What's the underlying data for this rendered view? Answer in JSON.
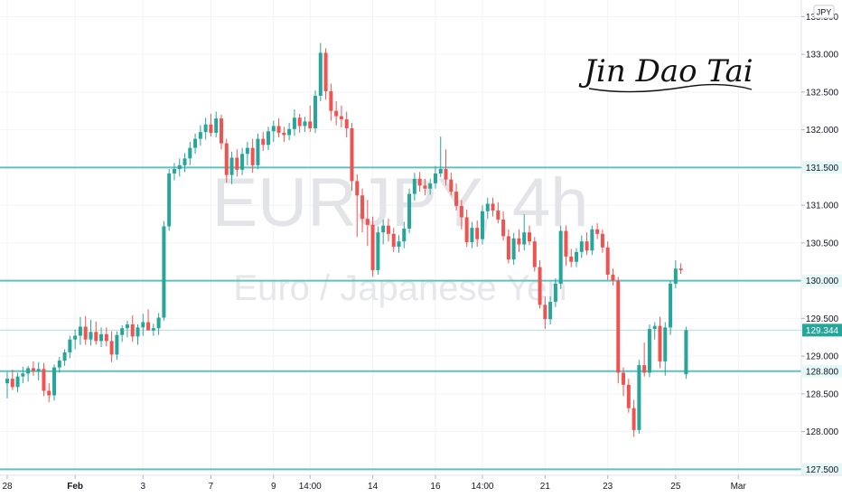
{
  "chart_data": {
    "type": "candlestick",
    "watermark": {
      "symbol": "EURJPY",
      "interval": "4h",
      "description": "Euro / Japanese Yen"
    },
    "currency_badge": "JPY",
    "signature_text": "Jin Dao Tai",
    "ylim": [
      127.42,
      133.72
    ],
    "y_ticks": [
      "128.000",
      "128.500",
      "129.000",
      "129.500",
      "130.500",
      "131.000",
      "131.500",
      "132.000",
      "132.500",
      "133.000",
      "133.500"
    ],
    "x_ticks": [
      {
        "label": "28",
        "bar": 0,
        "bold": false
      },
      {
        "label": "Feb",
        "bar": 13,
        "bold": true
      },
      {
        "label": "3",
        "bar": 26,
        "bold": false
      },
      {
        "label": "7",
        "bar": 39,
        "bold": false
      },
      {
        "label": "9",
        "bar": 51,
        "bold": false
      },
      {
        "label": "14:00",
        "bar": 58,
        "bold": false
      },
      {
        "label": "14",
        "bar": 70,
        "bold": false
      },
      {
        "label": "16",
        "bar": 82,
        "bold": false
      },
      {
        "label": "14:00",
        "bar": 91,
        "bold": false
      },
      {
        "label": "21",
        "bar": 103,
        "bold": false
      },
      {
        "label": "23",
        "bar": 115,
        "bold": false
      },
      {
        "label": "25",
        "bar": 128,
        "bold": false
      },
      {
        "label": "Mar",
        "bar": 140,
        "bold": false
      }
    ],
    "levels": [
      {
        "value": 131.5,
        "label": "131.500"
      },
      {
        "value": 130.0,
        "label": "130.000"
      },
      {
        "value": 128.8,
        "label": "128.800"
      },
      {
        "value": 127.5,
        "label": "127.500"
      }
    ],
    "last_price": {
      "value": 129.344,
      "label": "129.344"
    },
    "candles": [
      [
        128.64,
        128.79,
        128.44,
        128.7
      ],
      [
        128.7,
        128.82,
        128.55,
        128.59
      ],
      [
        128.59,
        128.78,
        128.52,
        128.73
      ],
      [
        128.73,
        128.86,
        128.64,
        128.77
      ],
      [
        128.77,
        128.87,
        128.66,
        128.84
      ],
      [
        128.84,
        128.93,
        128.74,
        128.8
      ],
      [
        128.8,
        128.92,
        128.68,
        128.83
      ],
      [
        128.83,
        128.91,
        128.47,
        128.54
      ],
      [
        128.54,
        128.64,
        128.39,
        128.48
      ],
      [
        128.48,
        128.89,
        128.41,
        128.85
      ],
      [
        128.85,
        128.99,
        128.78,
        128.94
      ],
      [
        128.94,
        129.09,
        128.87,
        129.05
      ],
      [
        129.05,
        129.27,
        128.97,
        129.22
      ],
      [
        129.22,
        129.35,
        129.09,
        129.27
      ],
      [
        129.27,
        129.52,
        129.15,
        129.39
      ],
      [
        129.39,
        129.53,
        129.15,
        129.22
      ],
      [
        129.22,
        129.48,
        129.14,
        129.32
      ],
      [
        129.32,
        129.46,
        129.15,
        129.2
      ],
      [
        129.2,
        129.38,
        129.12,
        129.29
      ],
      [
        129.29,
        129.38,
        129.13,
        129.2
      ],
      [
        129.2,
        129.33,
        128.92,
        129.02
      ],
      [
        129.02,
        129.33,
        128.95,
        129.28
      ],
      [
        129.28,
        129.41,
        129.19,
        129.37
      ],
      [
        129.37,
        129.47,
        129.25,
        129.42
      ],
      [
        129.42,
        129.54,
        129.19,
        129.26
      ],
      [
        129.26,
        129.42,
        129.15,
        129.38
      ],
      [
        129.38,
        129.56,
        129.27,
        129.45
      ],
      [
        129.45,
        129.62,
        129.39,
        129.34
      ],
      [
        129.34,
        129.43,
        129.27,
        129.37
      ],
      [
        129.37,
        129.57,
        129.28,
        129.51
      ],
      [
        129.51,
        130.79,
        129.47,
        130.72
      ],
      [
        130.72,
        131.48,
        130.66,
        131.42
      ],
      [
        131.42,
        131.56,
        131.33,
        131.48
      ],
      [
        131.48,
        131.62,
        131.38,
        131.53
      ],
      [
        131.53,
        131.69,
        131.44,
        131.62
      ],
      [
        131.62,
        131.84,
        131.53,
        131.76
      ],
      [
        131.76,
        131.95,
        131.68,
        131.88
      ],
      [
        131.88,
        132.06,
        131.79,
        131.97
      ],
      [
        131.97,
        132.16,
        131.87,
        132.07
      ],
      [
        132.07,
        132.21,
        131.91,
        131.96
      ],
      [
        131.96,
        132.24,
        131.9,
        132.15
      ],
      [
        132.15,
        132.2,
        131.74,
        131.82
      ],
      [
        131.82,
        131.88,
        131.3,
        131.4
      ],
      [
        131.4,
        131.71,
        131.28,
        131.63
      ],
      [
        131.63,
        131.74,
        131.38,
        131.47
      ],
      [
        131.47,
        131.76,
        131.4,
        131.68
      ],
      [
        131.68,
        131.84,
        131.53,
        131.76
      ],
      [
        131.76,
        131.88,
        131.43,
        131.53
      ],
      [
        131.53,
        131.95,
        131.48,
        131.88
      ],
      [
        131.88,
        131.97,
        131.72,
        131.8
      ],
      [
        131.8,
        132.04,
        131.73,
        131.98
      ],
      [
        131.98,
        132.12,
        131.84,
        132.05
      ],
      [
        132.05,
        132.15,
        131.9,
        131.96
      ],
      [
        131.96,
        132.04,
        131.84,
        131.93
      ],
      [
        131.93,
        132.09,
        131.86,
        132.01
      ],
      [
        132.01,
        132.27,
        131.92,
        132.16
      ],
      [
        132.16,
        132.21,
        131.96,
        132.05
      ],
      [
        132.05,
        132.17,
        131.97,
        132.11
      ],
      [
        132.11,
        132.32,
        131.97,
        132.02
      ],
      [
        132.02,
        132.52,
        131.96,
        132.45
      ],
      [
        132.45,
        133.15,
        132.38,
        133.02
      ],
      [
        133.02,
        133.08,
        132.4,
        132.51
      ],
      [
        132.51,
        132.61,
        132.12,
        132.25
      ],
      [
        132.25,
        132.38,
        132.06,
        132.18
      ],
      [
        132.18,
        132.32,
        132.03,
        132.14
      ],
      [
        132.14,
        132.24,
        131.9,
        132.02
      ],
      [
        132.02,
        132.09,
        131.19,
        131.32
      ],
      [
        131.32,
        131.41,
        130.58,
        131.13
      ],
      [
        131.13,
        131.22,
        130.64,
        130.82
      ],
      [
        130.82,
        131.07,
        130.46,
        130.74
      ],
      [
        130.74,
        130.85,
        130.05,
        130.14
      ],
      [
        130.14,
        130.72,
        130.08,
        130.64
      ],
      [
        130.64,
        130.81,
        130.48,
        130.73
      ],
      [
        130.73,
        130.82,
        130.52,
        130.62
      ],
      [
        130.62,
        130.7,
        130.38,
        130.45
      ],
      [
        130.45,
        130.6,
        130.37,
        130.52
      ],
      [
        130.52,
        130.78,
        130.43,
        130.69
      ],
      [
        130.69,
        131.22,
        130.63,
        131.15
      ],
      [
        131.15,
        131.43,
        131.06,
        131.35
      ],
      [
        131.35,
        131.44,
        131.18,
        131.26
      ],
      [
        131.26,
        131.35,
        131.13,
        131.22
      ],
      [
        131.22,
        131.35,
        131.14,
        131.29
      ],
      [
        131.29,
        131.52,
        131.22,
        131.42
      ],
      [
        131.42,
        131.91,
        131.37,
        131.48
      ],
      [
        131.48,
        131.74,
        131.26,
        131.34
      ],
      [
        131.34,
        131.43,
        131.13,
        131.18
      ],
      [
        131.18,
        131.29,
        130.93,
        130.99
      ],
      [
        130.99,
        131.07,
        130.68,
        130.84
      ],
      [
        130.84,
        130.94,
        130.45,
        130.51
      ],
      [
        130.51,
        130.78,
        130.43,
        130.7
      ],
      [
        130.7,
        130.8,
        130.45,
        130.55
      ],
      [
        130.55,
        131.0,
        130.48,
        130.92
      ],
      [
        130.92,
        131.1,
        130.82,
        131.02
      ],
      [
        131.02,
        131.1,
        130.85,
        130.93
      ],
      [
        130.93,
        131.04,
        130.76,
        130.81
      ],
      [
        130.81,
        130.92,
        130.53,
        130.59
      ],
      [
        130.59,
        130.68,
        130.23,
        130.28
      ],
      [
        130.28,
        130.63,
        130.21,
        130.56
      ],
      [
        130.56,
        130.68,
        130.38,
        130.48
      ],
      [
        130.48,
        130.88,
        130.4,
        130.64
      ],
      [
        130.64,
        130.73,
        130.47,
        130.52
      ],
      [
        130.52,
        130.58,
        130.12,
        130.18
      ],
      [
        130.18,
        130.27,
        129.63,
        129.68
      ],
      [
        129.68,
        129.79,
        129.36,
        129.49
      ],
      [
        129.49,
        129.79,
        129.42,
        129.72
      ],
      [
        129.72,
        130.03,
        129.65,
        129.96
      ],
      [
        129.96,
        130.73,
        129.89,
        130.66
      ],
      [
        130.66,
        130.73,
        130.2,
        130.32
      ],
      [
        130.32,
        130.42,
        130.18,
        130.25
      ],
      [
        130.25,
        130.43,
        130.18,
        130.38
      ],
      [
        130.38,
        130.6,
        130.3,
        130.52
      ],
      [
        130.52,
        130.64,
        130.34,
        130.4
      ],
      [
        130.4,
        130.73,
        130.34,
        130.68
      ],
      [
        130.68,
        130.76,
        130.55,
        130.62
      ],
      [
        130.62,
        130.68,
        130.37,
        130.44
      ],
      [
        130.44,
        130.52,
        130.01,
        130.08
      ],
      [
        130.08,
        130.16,
        129.94,
        130.0
      ],
      [
        130.0,
        130.05,
        128.64,
        128.78
      ],
      [
        128.78,
        128.85,
        128.47,
        128.62
      ],
      [
        128.62,
        128.7,
        128.25,
        128.31
      ],
      [
        128.31,
        128.42,
        127.93,
        128.02
      ],
      [
        128.02,
        128.95,
        127.97,
        128.88
      ],
      [
        128.88,
        129.18,
        128.73,
        128.78
      ],
      [
        128.78,
        129.42,
        128.72,
        129.36
      ],
      [
        129.36,
        129.45,
        129.22,
        129.4
      ],
      [
        129.4,
        129.52,
        128.84,
        128.93
      ],
      [
        128.93,
        129.45,
        128.74,
        129.38
      ],
      [
        129.38,
        130.0,
        129.28,
        129.96
      ],
      [
        129.96,
        130.27,
        129.9,
        130.16
      ],
      [
        130.16,
        130.23,
        130.09,
        130.14
      ],
      [
        128.76,
        129.39,
        128.7,
        129.344
      ]
    ],
    "xlabel": "",
    "ylabel": ""
  }
}
